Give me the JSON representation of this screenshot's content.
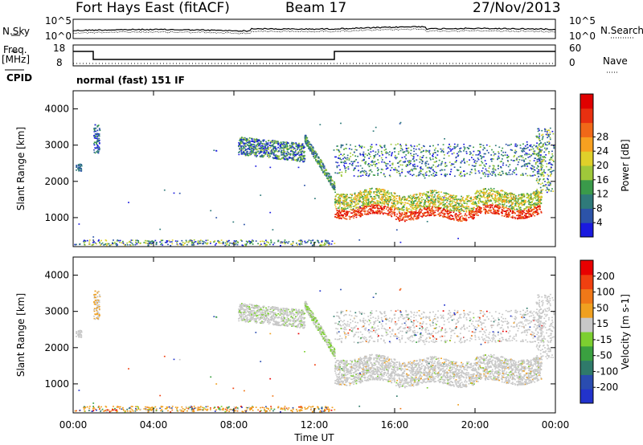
{
  "header": {
    "station": "Fort Hays East (fitACF)",
    "beam": "Beam 17",
    "date": "27/Nov/2013"
  },
  "labels": {
    "nsky": "N.Sky",
    "nsearch": "N.Search",
    "freq": "Freq.",
    "mhz": "[MHz]",
    "cpid": "CPID",
    "nave": "Nave",
    "cpid_text": "normal (fast) 151 IF",
    "exp_top": "10^5",
    "exp_bot": "10^0",
    "freq_top": "18",
    "freq_bot": "8",
    "nave_top": "60",
    "nave_bot": "0"
  },
  "chart_data": [
    {
      "type": "heatmap",
      "title": "",
      "xlabel": "Time UT",
      "ylabel": "Slant Range [km]",
      "xticks": [
        "00:00",
        "04:00",
        "08:00",
        "12:00",
        "16:00",
        "20:00",
        "00:00"
      ],
      "yticks": [
        "1000",
        "2000",
        "3000",
        "4000"
      ],
      "ylim": [
        200,
        4500
      ],
      "colorbar": {
        "label": "Power [dB]",
        "ticks": [
          "4",
          "8",
          "12",
          "16",
          "20",
          "24",
          "28"
        ],
        "colors": [
          "#1a1adf",
          "#2c53a8",
          "#2f7a7a",
          "#3a9a4a",
          "#9fc83a",
          "#e0d02a",
          "#f7a020",
          "#f06818",
          "#e83010",
          "#e00000"
        ]
      }
    },
    {
      "type": "heatmap",
      "title": "",
      "xlabel": "Time UT",
      "ylabel": "Slant Range [km]",
      "xticks": [
        "00:00",
        "04:00",
        "08:00",
        "12:00",
        "16:00",
        "20:00",
        "00:00"
      ],
      "yticks": [
        "1000",
        "2000",
        "3000",
        "4000"
      ],
      "ylim": [
        200,
        4500
      ],
      "colorbar": {
        "label": "Velocity [m s-1]",
        "ticks": [
          "200",
          "100",
          "50",
          "15",
          "-15",
          "-50",
          "-100",
          "-200"
        ],
        "colors": [
          "#2233cc",
          "#2a4cb0",
          "#2f7a6a",
          "#3aa040",
          "#7ccf30",
          "#c8c8c8",
          "#f0a020",
          "#f07818",
          "#f04010",
          "#e80000"
        ]
      }
    }
  ]
}
